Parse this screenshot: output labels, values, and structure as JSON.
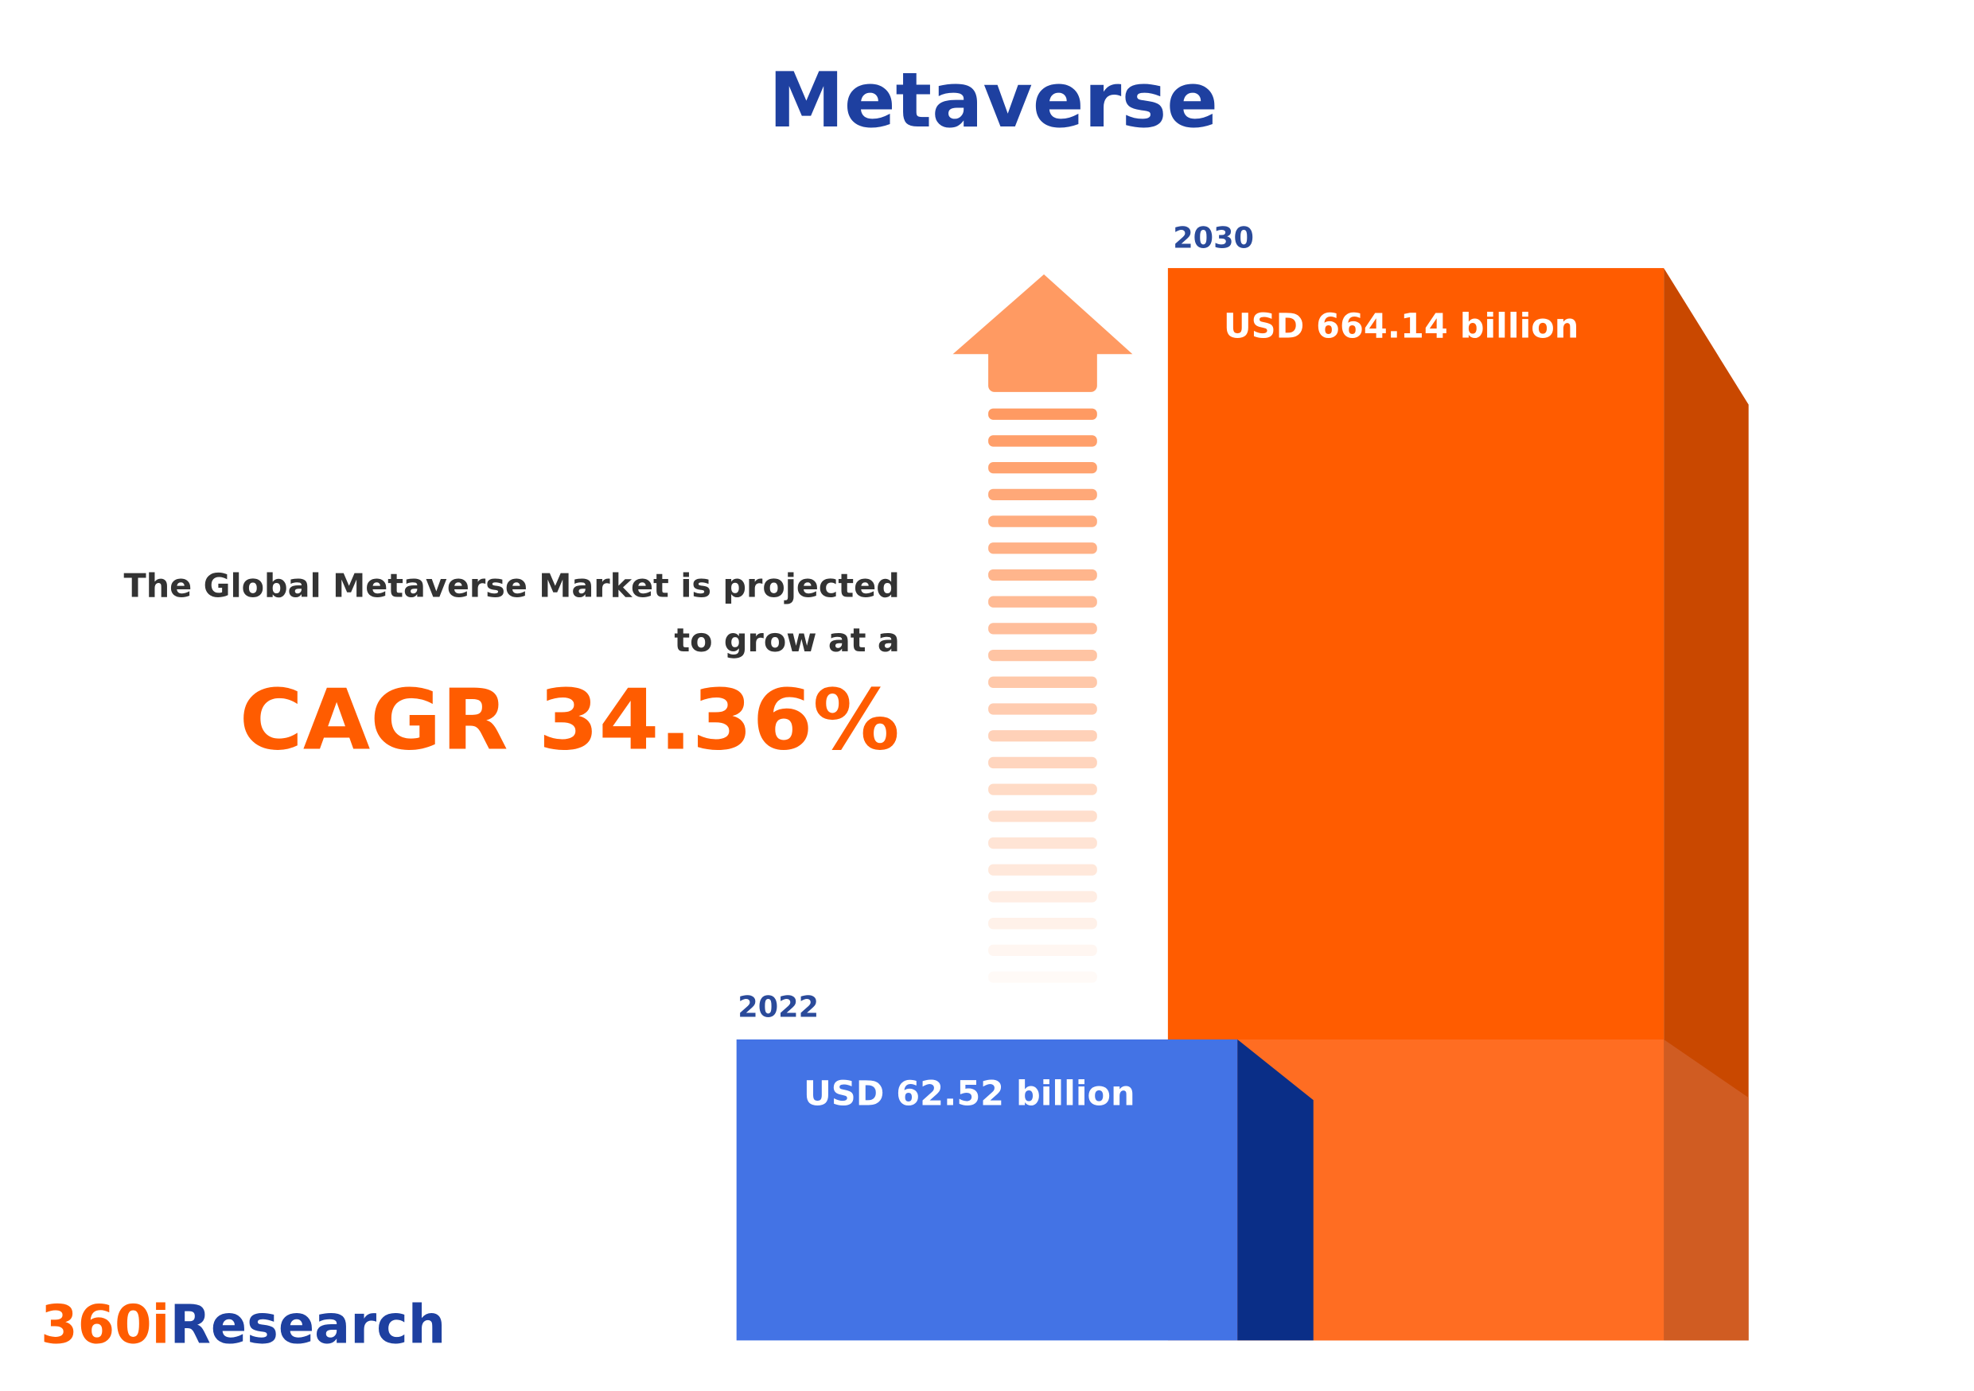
{
  "title": "Metaverse",
  "description_line1": "The Global Metaverse Market is projected",
  "description_line2": "to grow at a",
  "cagr_label": "CAGR 34.36%",
  "logo": {
    "part1": "360i",
    "part2": "Research"
  },
  "colors": {
    "title": "#1e40a0",
    "orange": "#ff5c00",
    "blue": "#4373e5",
    "dark_blue": "#0a2e87",
    "arrow": "#ff9a62",
    "text": "#333333"
  },
  "chart_data": {
    "type": "bar",
    "title": "Metaverse",
    "categories": [
      "2022",
      "2030"
    ],
    "values": [
      62.52,
      664.14
    ],
    "unit": "USD billion",
    "data_labels": [
      "USD 62.52 billion",
      "USD 664.14 billion"
    ],
    "cagr": 34.36,
    "style": "3d-bars"
  }
}
